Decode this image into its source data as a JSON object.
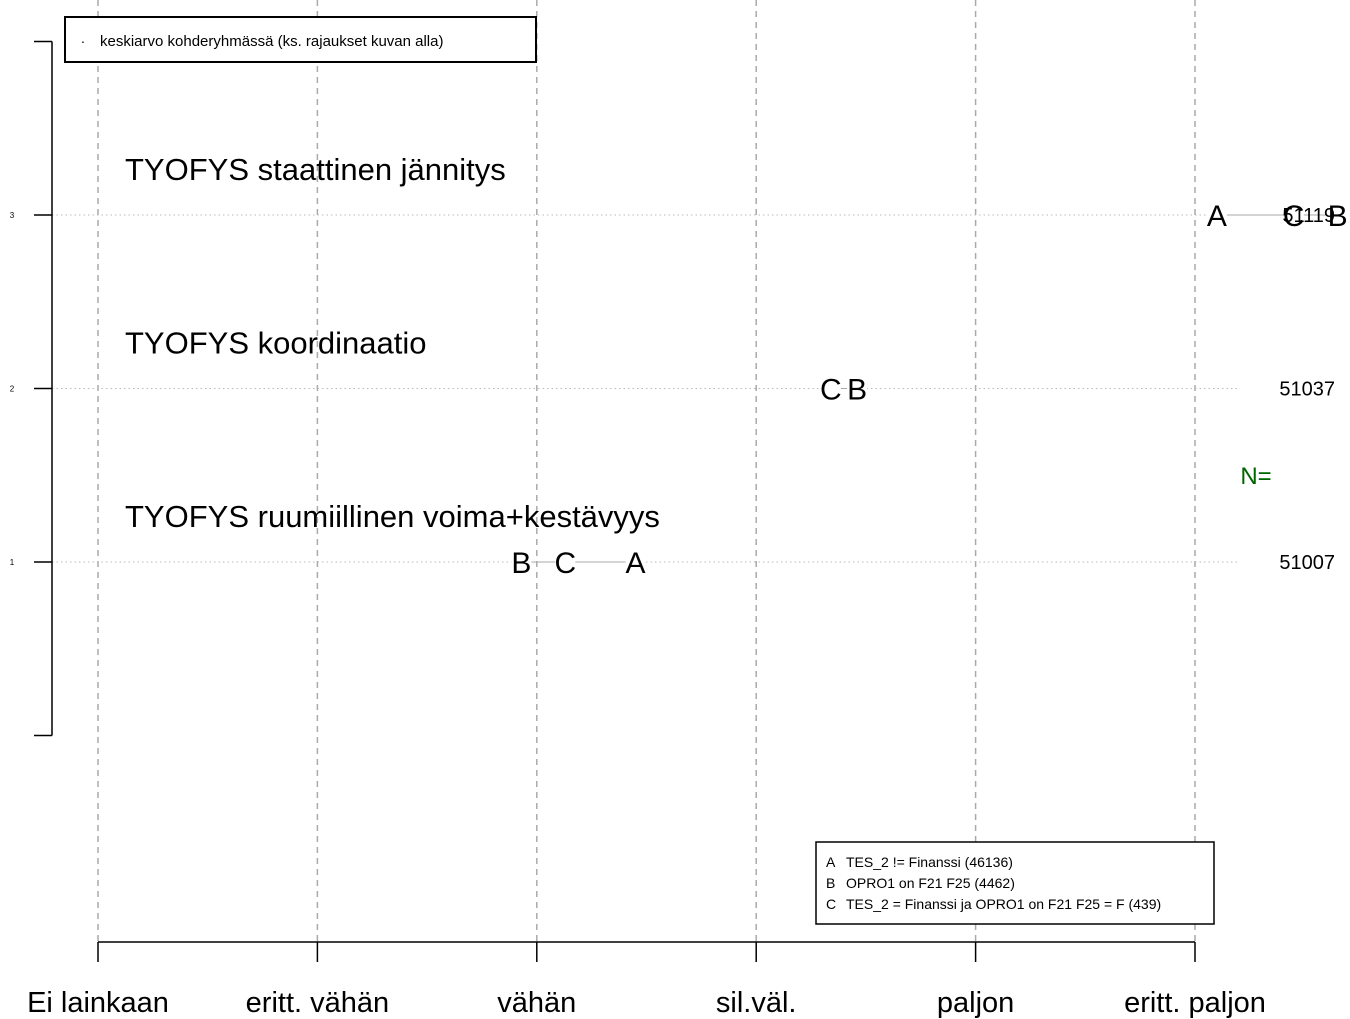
{
  "chart_data": {
    "type": "scatter",
    "legend_top": {
      "symbol": "·",
      "label": "keskiarvo kohderyhmässä (ks. rajaukset kuvan alla)"
    },
    "x_categories": [
      "Ei lainkaan",
      "eritt. vähän",
      "vähän",
      "sil.väl.",
      "paljon",
      "eritt. paljon"
    ],
    "y_ticks": [
      "1",
      "2",
      "3"
    ],
    "n_label": "N=",
    "n_color": "#006400",
    "items": [
      {
        "label": "TYOFYS staattinen jännitys",
        "y": 3,
        "n": "51119",
        "points": [
          {
            "group": "A",
            "x": 5.1
          },
          {
            "group": "B",
            "x": 5.65
          },
          {
            "group": "C",
            "x": 5.45
          }
        ]
      },
      {
        "label": "TYOFYS koordinaatio",
        "y": 2,
        "n": "51037",
        "points": [
          {
            "group": "A",
            "x": 3.46
          },
          {
            "group": "B",
            "x": 3.46
          },
          {
            "group": "C",
            "x": 3.34
          }
        ]
      },
      {
        "label": "TYOFYS ruumiillinen voima+kestävyys",
        "y": 1,
        "n": "51007",
        "points": [
          {
            "group": "A",
            "x": 2.45
          },
          {
            "group": "B",
            "x": 1.93
          },
          {
            "group": "C",
            "x": 2.13
          }
        ]
      }
    ],
    "groups_legend": [
      {
        "key": "A",
        "label": "TES_2 != Finanssi (46136)"
      },
      {
        "key": "B",
        "label": "OPRO1 on F21 F25 (4462)"
      },
      {
        "key": "C",
        "label": "TES_2 = Finanssi ja OPRO1 on F21 F25 = F (439)"
      }
    ],
    "grid": true
  }
}
